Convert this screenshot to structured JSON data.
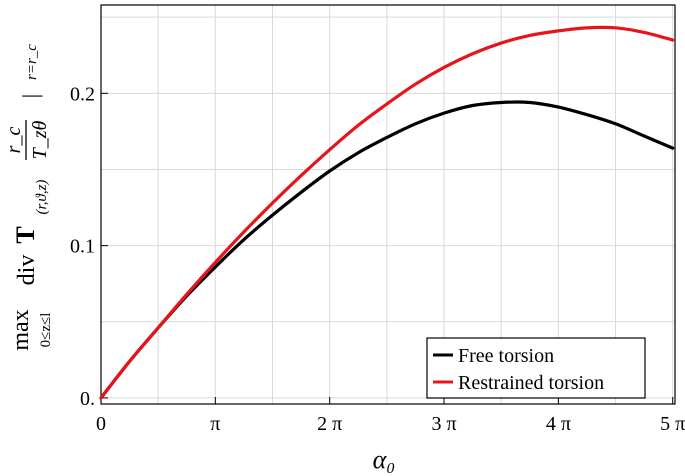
{
  "chart_data": {
    "type": "line",
    "xlabel": "α₀",
    "ylabel": {
      "operator": "max",
      "operator_subscript": "0≤z≤l",
      "div_text": "div",
      "bold_symbol": "T",
      "symbol_subscript": "(r,ϑ,z)",
      "fraction_numerator": "r_c",
      "fraction_denominator": "T_zθ",
      "eval_bar": "|",
      "eval_condition": "r=r_c"
    },
    "xlim": [
      0,
      5.02
    ],
    "ylim": [
      -0.004,
      0.258
    ],
    "x_unit": "π",
    "x_ticks": [
      {
        "value": 0,
        "label": "0"
      },
      {
        "value": 1,
        "label": "π"
      },
      {
        "value": 2,
        "label": "2 π"
      },
      {
        "value": 3,
        "label": "3 π"
      },
      {
        "value": 4,
        "label": "4 π"
      },
      {
        "value": 5,
        "label": "5 π"
      }
    ],
    "y_ticks": [
      {
        "value": 0,
        "label": "0."
      },
      {
        "value": 0.1,
        "label": "0.1"
      },
      {
        "value": 0.2,
        "label": "0.2"
      }
    ],
    "grid": true,
    "legend_position": "bottom-right",
    "series": [
      {
        "name": "Free torsion",
        "color": "#000000",
        "x": [
          0,
          0.25,
          0.5,
          0.75,
          1.0,
          1.25,
          1.5,
          1.75,
          2.0,
          2.25,
          2.5,
          2.75,
          3.0,
          3.25,
          3.5,
          3.75,
          4.0,
          4.25,
          4.5,
          4.75,
          5.0
        ],
        "y": [
          0.0,
          0.024,
          0.046,
          0.067,
          0.086,
          0.104,
          0.12,
          0.135,
          0.149,
          0.161,
          0.171,
          0.18,
          0.187,
          0.192,
          0.194,
          0.194,
          0.191,
          0.186,
          0.18,
          0.172,
          0.164
        ]
      },
      {
        "name": "Restrained torsion",
        "color": "#e8141c",
        "x": [
          0,
          0.25,
          0.5,
          0.75,
          1.0,
          1.25,
          1.5,
          1.75,
          2.0,
          2.25,
          2.5,
          2.75,
          3.0,
          3.25,
          3.5,
          3.75,
          4.0,
          4.25,
          4.5,
          4.75,
          5.0
        ],
        "y": [
          0.0,
          0.024,
          0.046,
          0.068,
          0.089,
          0.109,
          0.128,
          0.146,
          0.163,
          0.179,
          0.193,
          0.206,
          0.217,
          0.226,
          0.233,
          0.238,
          0.241,
          0.243,
          0.243,
          0.24,
          0.235
        ]
      }
    ]
  }
}
